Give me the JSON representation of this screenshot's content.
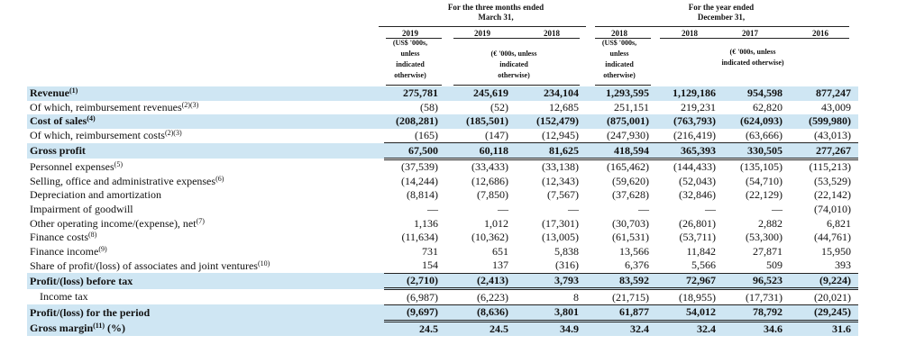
{
  "header": {
    "three_months_title": [
      "For the three months ended",
      "March 31,"
    ],
    "year_title": [
      "For the year ended",
      "December 31,"
    ],
    "years": [
      "2019",
      "2019",
      "2018",
      "2018",
      "2018",
      "2017",
      "2016"
    ],
    "unit_usd_1": [
      "(US$ '000s,",
      "unless",
      "indicated",
      "otherwise)"
    ],
    "unit_eur_1": [
      "(€ '000s, unless",
      "indicated",
      "otherwise)"
    ],
    "unit_usd_2": [
      "(US$ '000s,",
      "unless",
      "indicated",
      "otherwise)"
    ],
    "unit_eur_2": [
      "(€ '000s, unless",
      "indicated otherwise)"
    ]
  },
  "rows": [
    {
      "label": "Revenue",
      "sup": "(1)",
      "values": [
        "275,781",
        "245,619",
        "234,104",
        "1,293,595",
        "1,129,186",
        "954,598",
        "877,247"
      ]
    },
    {
      "label": "Of which, reimbursement revenues",
      "sup": "(2)(3)",
      "values": [
        "(58)",
        "(52)",
        "12,685",
        "251,151",
        "219,231",
        "62,820",
        "43,009"
      ]
    },
    {
      "label": "Cost of sales",
      "sup": "(4)",
      "values": [
        "(208,281)",
        "(185,501)",
        "(152,479)",
        "(875,001)",
        "(763,793)",
        "(624,093)",
        "(599,980)"
      ]
    },
    {
      "label": "Of which, reimbursement costs",
      "sup": "(2)(3)",
      "values": [
        "(165)",
        "(147)",
        "(12,945)",
        "(247,930)",
        "(216,419)",
        "(63,666)",
        "(43,013)"
      ]
    },
    {
      "label": "Gross profit",
      "sup": "",
      "values": [
        "67,500",
        "60,118",
        "81,625",
        "418,594",
        "365,393",
        "330,505",
        "277,267"
      ]
    },
    {
      "label": "Personnel expenses",
      "sup": "(5)",
      "values": [
        "(37,539)",
        "(33,433)",
        "(33,138)",
        "(165,462)",
        "(144,433)",
        "(135,105)",
        "(115,213)"
      ]
    },
    {
      "label": "Selling, office and administrative expenses",
      "sup": "(6)",
      "values": [
        "(14,244)",
        "(12,686)",
        "(12,343)",
        "(59,620)",
        "(52,043)",
        "(54,710)",
        "(53,529)"
      ]
    },
    {
      "label": "Depreciation and amortization",
      "sup": "",
      "values": [
        "(8,814)",
        "(7,850)",
        "(7,567)",
        "(37,628)",
        "(32,846)",
        "(22,129)",
        "(22,142)"
      ]
    },
    {
      "label": "Impairment of goodwill",
      "sup": "",
      "values": [
        "—",
        "—",
        "—",
        "—",
        "—",
        "—",
        "(74,010)"
      ]
    },
    {
      "label": "Other operating income/(expense), net",
      "sup": "(7)",
      "values": [
        "1,136",
        "1,012",
        "(17,301)",
        "(30,703)",
        "(26,801)",
        "2,882",
        "6,821"
      ]
    },
    {
      "label": "Finance costs",
      "sup": "(8)",
      "values": [
        "(11,634)",
        "(10,362)",
        "(13,005)",
        "(61,531)",
        "(53,711)",
        "(53,300)",
        "(44,761)"
      ]
    },
    {
      "label": "Finance income",
      "sup": "(9)",
      "values": [
        "731",
        "651",
        "5,838",
        "13,566",
        "11,842",
        "27,871",
        "15,950"
      ]
    },
    {
      "label": "Share of profit/(loss) of associates and joint ventures",
      "sup": "(10)",
      "values": [
        "154",
        "137",
        "(316)",
        "6,376",
        "5,566",
        "509",
        "393"
      ]
    },
    {
      "label": "Profit/(loss) before tax",
      "sup": "",
      "values": [
        "(2,710)",
        "(2,413)",
        "3,793",
        "83,592",
        "72,967",
        "96,523",
        "(9,224)"
      ]
    },
    {
      "label": "Income tax",
      "sup": "",
      "values": [
        "(6,987)",
        "(6,223)",
        "8",
        "(21,715)",
        "(18,955)",
        "(17,731)",
        "(20,021)"
      ]
    },
    {
      "label": "Profit/(loss) for the period",
      "sup": "",
      "values": [
        "(9,697)",
        "(8,636)",
        "3,801",
        "61,877",
        "54,012",
        "78,792",
        "(29,245)"
      ]
    },
    {
      "label": "Gross margin",
      "sup": "(11)",
      "suffix": " (%)",
      "values": [
        "24.5",
        "24.5",
        "34.9",
        "32.4",
        "32.4",
        "34.6",
        "31.6"
      ]
    }
  ]
}
